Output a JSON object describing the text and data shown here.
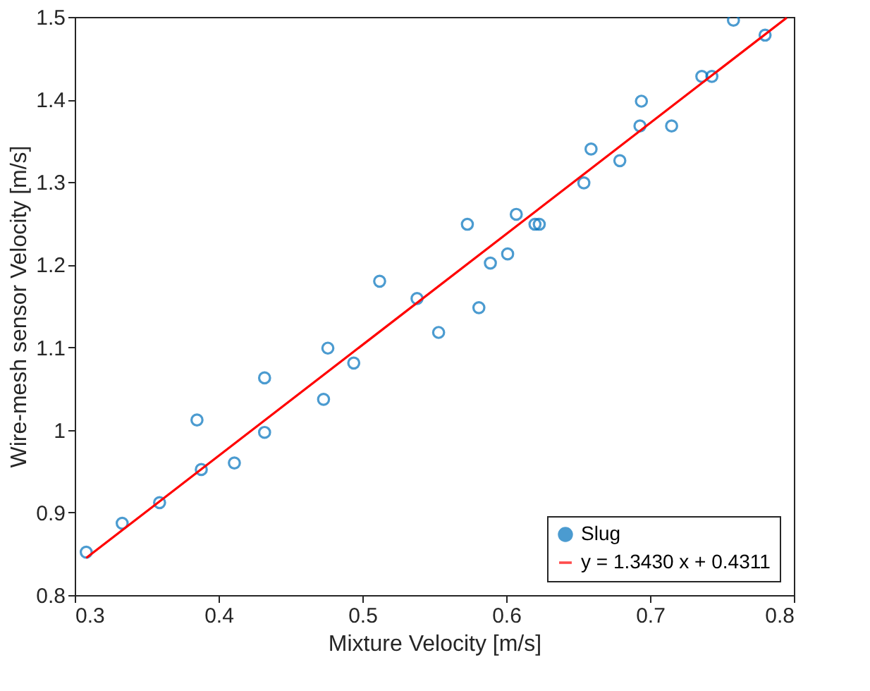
{
  "chart_data": {
    "type": "scatter",
    "xlabel": "Mixture Velocity [m/s]",
    "ylabel": "Wire-mesh sensor Velocity [m/s]",
    "xlim": [
      0.3,
      0.8
    ],
    "xticks": [
      0.3,
      0.4,
      0.5,
      0.6,
      0.7,
      0.8
    ],
    "ylim": [
      0.8,
      1.5
    ],
    "yticks": [
      0.8,
      0.9,
      1,
      1.1,
      1.2,
      1.3,
      1.4,
      1.5
    ],
    "grid": false,
    "legend": "bottom right",
    "series": [
      {
        "name": "Slug",
        "marker": "circle",
        "color": "#0072bd",
        "x": [
          0.308,
          0.333,
          0.359,
          0.385,
          0.388,
          0.411,
          0.432,
          0.432,
          0.473,
          0.476,
          0.494,
          0.512,
          0.538,
          0.553,
          0.573,
          0.581,
          0.589,
          0.601,
          0.607,
          0.62,
          0.623,
          0.654,
          0.659,
          0.679,
          0.693,
          0.694,
          0.715,
          0.736,
          0.743,
          0.758,
          0.78
        ],
        "values": [
          0.852,
          0.887,
          0.912,
          1.012,
          0.952,
          0.96,
          1.063,
          0.997,
          1.037,
          1.099,
          1.081,
          1.18,
          1.159,
          1.118,
          1.249,
          1.148,
          1.202,
          1.213,
          1.261,
          1.249,
          1.249,
          1.299,
          1.34,
          1.326,
          1.368,
          1.398,
          1.368,
          1.428,
          1.428,
          1.496,
          1.478
        ]
      },
      {
        "name": "y = 1.3430 x + 0.4311",
        "type": "line",
        "line_style": "solid",
        "color": "#ff0000",
        "x": [
          0.308,
          0.795
        ],
        "values": [
          0.845,
          1.499
        ]
      }
    ]
  }
}
